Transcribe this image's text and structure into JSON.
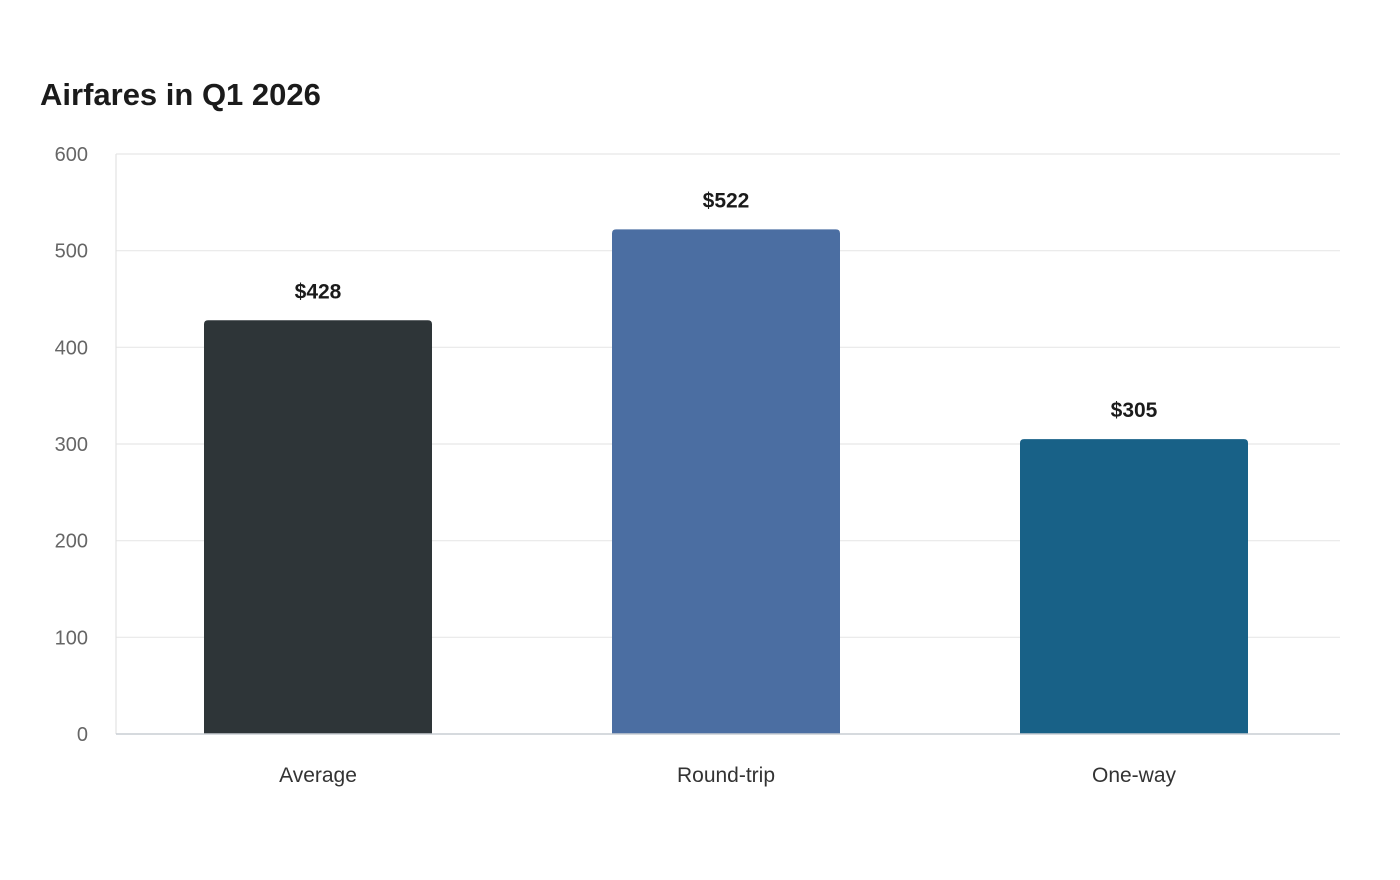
{
  "chart_data": {
    "type": "bar",
    "title": "Airfares in Q1 2026",
    "categories": [
      "Average",
      "Round-trip",
      "One-way"
    ],
    "values": [
      428,
      522,
      305
    ],
    "data_labels": [
      "$428",
      "$522",
      "$305"
    ],
    "colors": [
      "#2e3538",
      "#4b6ea2",
      "#186187"
    ],
    "xlabel": "",
    "ylabel": "",
    "ylim": [
      0,
      600
    ],
    "yticks": [
      0,
      100,
      200,
      300,
      400,
      500,
      600
    ],
    "grid": true,
    "legend": "none"
  }
}
